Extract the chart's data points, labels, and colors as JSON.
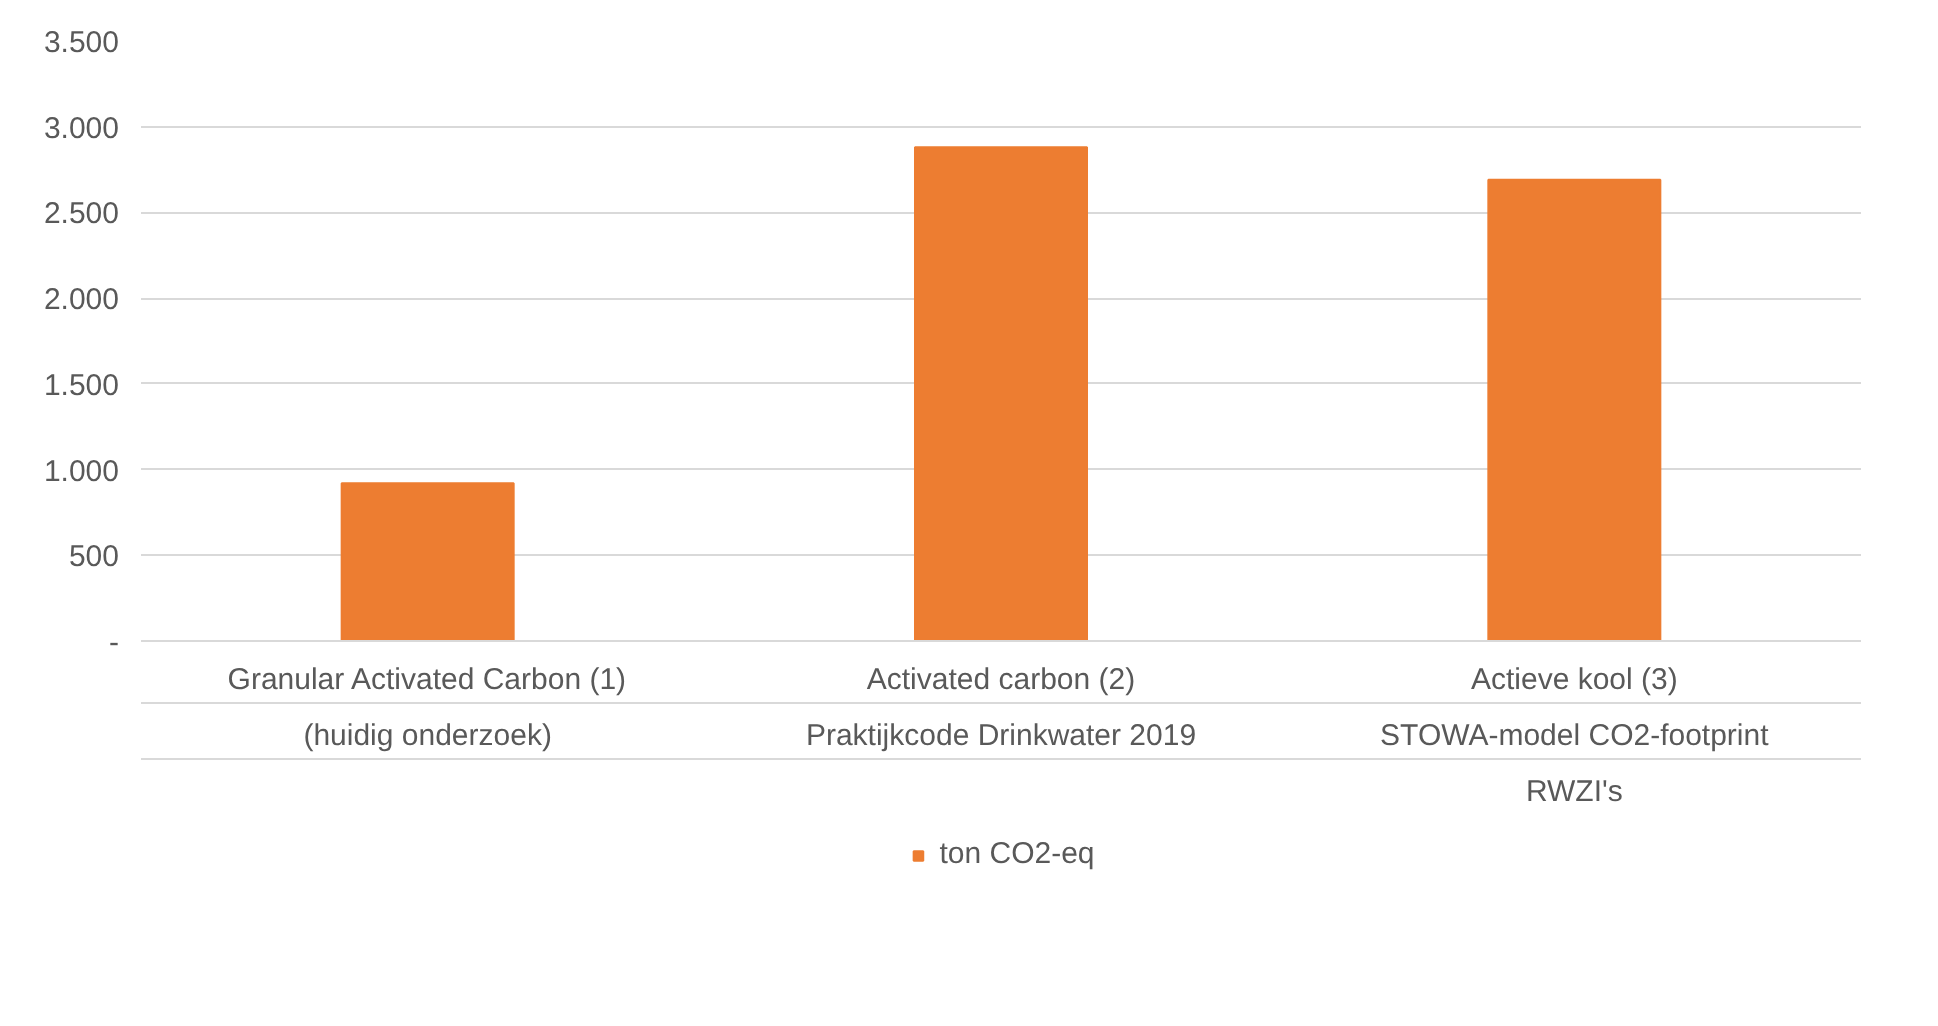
{
  "chart_data": {
    "type": "bar",
    "categories": [
      "Granular Activated Carbon (1)\n(huidig onderzoek)",
      "Activated carbon (2)\nPraktijkcode Drinkwater 2019",
      "Actieve kool (3)\nSTOWA-model CO2-footprint\nRWZI's"
    ],
    "series": [
      {
        "name": "ton CO2-eq",
        "color": "#ed7d31",
        "values": [
          920,
          2880,
          2690
        ]
      }
    ],
    "ylim": [
      0,
      3500
    ],
    "yticks": [
      {
        "value": 0,
        "label": "-"
      },
      500,
      {
        "value": 1000,
        "label": "1.000"
      },
      {
        "value": 1500,
        "label": "1.500"
      },
      {
        "value": 2000,
        "label": "2.000"
      },
      {
        "value": 2500,
        "label": "2.500"
      },
      {
        "value": 3000,
        "label": "3.000"
      },
      {
        "value": 3500,
        "label": "3.500"
      }
    ],
    "grid": "y",
    "legend": "bottom"
  }
}
